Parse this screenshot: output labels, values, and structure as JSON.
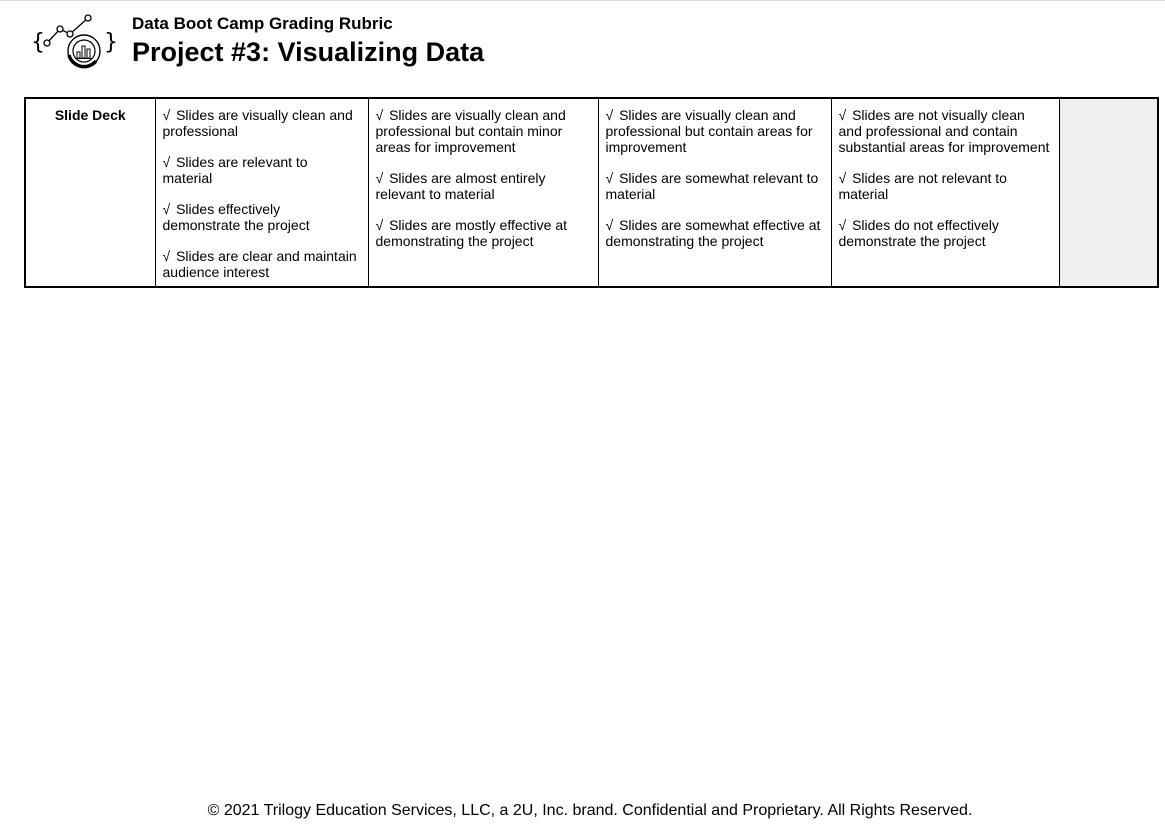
{
  "header": {
    "subtitle": "Data Boot Camp Grading Rubric",
    "title": "Project #3: Visualizing Data",
    "logo_icon": "data-chart-logo-icon"
  },
  "rubric": {
    "check_symbol": "√",
    "rows": [
      {
        "criterion": "Slide Deck",
        "columns": [
          {
            "items": [
              "Slides are visually clean and professional",
              "Slides are relevant to material",
              "Slides effectively demonstrate the project",
              "Slides are clear and maintain audience interest"
            ]
          },
          {
            "items": [
              "Slides are visually clean and professional but contain minor areas for improvement",
              "Slides are almost entirely relevant to material",
              "Slides are mostly effective at demonstrating the project"
            ]
          },
          {
            "items": [
              "Slides are visually clean and professional but contain areas for improvement",
              "Slides are somewhat relevant to material",
              "Slides are somewhat effective at demonstrating the project"
            ]
          },
          {
            "items": [
              "Slides are not visually clean and professional and contain substantial areas for improvement",
              "Slides are not relevant to material",
              "Slides do not effectively demonstrate the project"
            ]
          }
        ],
        "score": ""
      }
    ]
  },
  "footer": {
    "text": "© 2021 Trilogy Education Services, LLC, a 2U, Inc. brand. Confidential and Proprietary. All Rights Reserved."
  },
  "colors": {
    "score_cell_bg": "#efefef",
    "border": "#000000"
  }
}
